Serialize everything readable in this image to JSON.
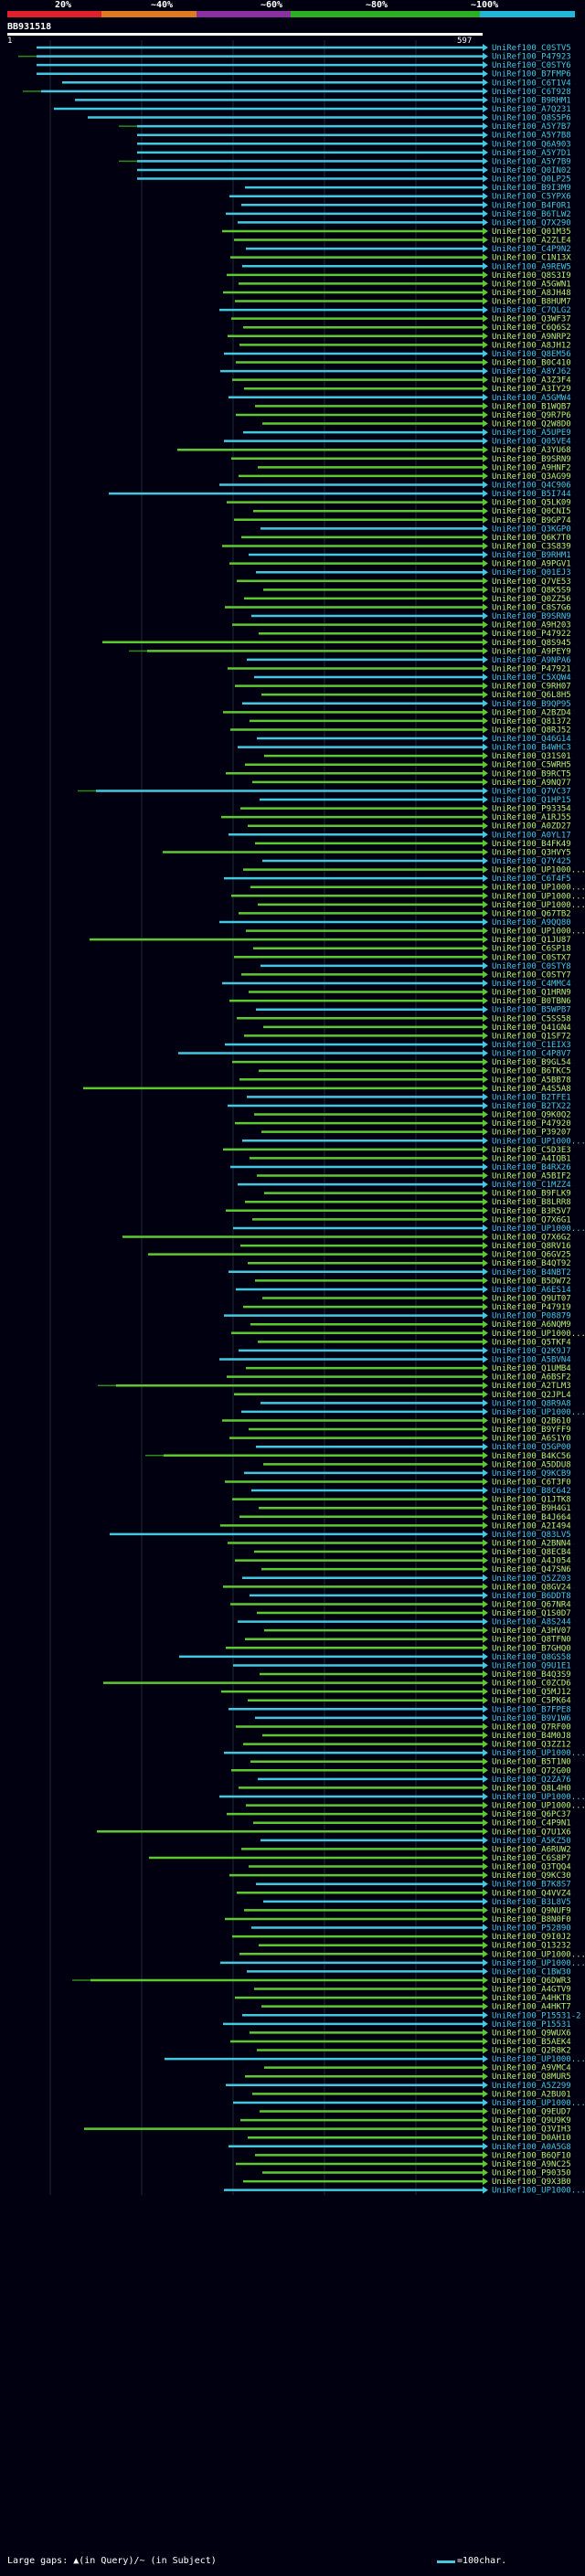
{
  "scale": {
    "ticks": [
      "20%",
      "~40%",
      "~60%",
      "~80%",
      "~100%"
    ],
    "colors": [
      "#e0202a",
      "#e07a20",
      "#8a30a0",
      "#2ab020",
      "#2ab020",
      "#20b8d8"
    ]
  },
  "query": {
    "id": "BB931518",
    "start_label": "1",
    "end_label": "597"
  },
  "hits": {
    "colors": {
      "high": "#44c8e0",
      "mid": "#5ec832",
      "low": "#2a8a1a",
      "label_high": "#44c8e0",
      "label_mid": "#b8f070"
    },
    "labels": [
      "UniRef100_C0STV5",
      "UniRef100_P47923",
      "UniRef100_C0STY6",
      "UniRef100_B7FMP6",
      "UniRef100_C6T1V4",
      "UniRef100_C6T928",
      "UniRef100_B9RHM1",
      "UniRef100_A7Q231",
      "UniRef100_Q8S5P6",
      "UniRef100_A5Y7B7",
      "UniRef100_A5Y7B8",
      "UniRef100_Q6A903",
      "UniRef100_A5Y7D1",
      "UniRef100_A5Y7B9",
      "UniRef100_Q0IN02",
      "UniRef100_Q0LP25",
      "UniRef100_B9I3M9",
      "UniRef100_C5YPX6",
      "UniRef100_B4F0R1",
      "UniRef100_B6TLW2",
      "UniRef100_Q7X290",
      "UniRef100_Q01M35",
      "UniRef100_A2ZLE4",
      "UniRef100_C4P9N2",
      "UniRef100_C1N13X",
      "UniRef100_A9REW5",
      "UniRef100_Q8S3I9",
      "UniRef100_A5GWN1",
      "UniRef100_A8JH48",
      "UniRef100_B8HUM7",
      "UniRef100_C7QLG2",
      "UniRef100_Q3WF37",
      "UniRef100_C6Q6S2",
      "UniRef100_A9NRP2",
      "UniRef100_A8JH12",
      "UniRef100_Q8EM56",
      "UniRef100_B0C410",
      "UniRef100_A8YJ62",
      "UniRef100_A3Z3F4",
      "UniRef100_A3IY29",
      "UniRef100_A5GMW4",
      "UniRef100_B1WQB7",
      "UniRef100_Q9R7P6",
      "UniRef100_Q2W8D0",
      "UniRef100_A5UPE9",
      "UniRef100_Q05VE4",
      "UniRef100_A3YU68",
      "UniRef100_B9SRN9",
      "UniRef100_A9HNF2",
      "UniRef100_Q3AG99",
      "UniRef100_Q4C906",
      "UniRef100_B5I744",
      "UniRef100_Q5LK09",
      "UniRef100_Q0CNI5",
      "UniRef100_B9GP74",
      "UniRef100_Q3KGP0",
      "UniRef100_Q6K7T0",
      "UniRef100_C3S839",
      "UniRef100_B9RHM1",
      "UniRef100_A9PGV1",
      "UniRef100_Q01EJ3",
      "UniRef100_Q7VE53",
      "UniRef100_Q8K5S9",
      "UniRef100_Q0ZZ56",
      "UniRef100_C8S7G6",
      "UniRef100_B9SRN9",
      "UniRef100_A9H203",
      "UniRef100_P47922",
      "UniRef100_Q8S945",
      "UniRef100_A9PEY9",
      "UniRef100_A9NPA6",
      "UniRef100_P47921",
      "UniRef100_C5XQW4",
      "UniRef100_C9RH07",
      "UniRef100_Q6L8H5",
      "UniRef100_B9QP95",
      "UniRef100_A2BZD4",
      "UniRef100_Q81372",
      "UniRef100_Q8RJ52",
      "UniRef100_Q46G14",
      "UniRef100_B4WHC3",
      "UniRef100_Q31S01",
      "UniRef100_C5WRH5",
      "UniRef100_B9RCT5",
      "UniRef100_A9NQ77",
      "UniRef100_Q7VC37",
      "UniRef100_Q1HP15",
      "UniRef100_P93354",
      "UniRef100_A1RJ55",
      "UniRef100_A0ZD27",
      "UniRef100_A0YL17",
      "UniRef100_B4FK49",
      "UniRef100_Q3HVY5",
      "UniRef100_Q7Y425",
      "UniRef100_UP1000...",
      "UniRef100_C6T4F5",
      "UniRef100_UP1000...",
      "UniRef100_UP1000...",
      "UniRef100_UP1000...",
      "UniRef100_Q67TB2",
      "UniRef100_A9QQ80",
      "UniRef100_UP1000...",
      "UniRef100_Q1JU87",
      "UniRef100_C6SP18",
      "UniRef100_C0STX7",
      "UniRef100_C0STY8",
      "UniRef100_C0STY7",
      "UniRef100_C4MMC4",
      "UniRef100_Q1HRN9",
      "UniRef100_B0TBN6",
      "UniRef100_B5WPB7",
      "UniRef100_C5SS58",
      "UniRef100_Q41GN4",
      "UniRef100_Q1SF72",
      "UniRef100_C1EIX3",
      "UniRef100_C4P8V7",
      "UniRef100_B9GL54",
      "UniRef100_B6TKC5",
      "UniRef100_A5BB78",
      "UniRef100_A4S5A8",
      "UniRef100_B2TFE1",
      "UniRef100_B2TX22",
      "UniRef100_Q9K0Q2",
      "UniRef100_P47920",
      "UniRef100_P39207",
      "UniRef100_UP1000...",
      "UniRef100_C5D3E3",
      "UniRef100_A4IQB1",
      "UniRef100_B4RX26",
      "UniRef100_A5BIF2",
      "UniRef100_C1MZZ4",
      "UniRef100_B9FLK9",
      "UniRef100_B8LRR8",
      "UniRef100_B3R5V7",
      "UniRef100_Q7X6G1",
      "UniRef100_UP1000...",
      "UniRef100_Q7X6G2",
      "UniRef100_Q8RV16",
      "UniRef100_Q6GV25",
      "UniRef100_B4QT92",
      "UniRef100_B4NBT2",
      "UniRef100_B5DW72",
      "UniRef100_A6ES14",
      "UniRef100_Q9UT07",
      "UniRef100_P47919",
      "UniRef100_P08879",
      "UniRef100_A6NQM9",
      "UniRef100_UP1000...",
      "UniRef100_Q5TKF4",
      "UniRef100_Q2K9J7",
      "UniRef100_A5BVN4",
      "UniRef100_Q1UMB4",
      "UniRef100_A6BSF2",
      "UniRef100_A2TLM3",
      "UniRef100_Q2JPL4",
      "UniRef100_Q8R9A8",
      "UniRef100_UP1000...",
      "UniRef100_Q2B610",
      "UniRef100_B9YFF9",
      "UniRef100_A6S1Y0",
      "UniRef100_Q5GP00",
      "UniRef100_B4KC56",
      "UniRef100_A5DDU8",
      "UniRef100_Q9KCB9",
      "UniRef100_C6T3F0",
      "UniRef100_B8C642",
      "UniRef100_Q1JTK8",
      "UniRef100_B9H4G1",
      "UniRef100_B4J664",
      "UniRef100_A2I494",
      "UniRef100_Q83LV5",
      "UniRef100_A2BNN4",
      "UniRef100_Q8ECB4",
      "UniRef100_A4J054",
      "UniRef100_Q47SN6",
      "UniRef100_Q5ZZ03",
      "UniRef100_Q8GV24",
      "UniRef100_B6DDT8",
      "UniRef100_Q67NR4",
      "UniRef100_Q1S0D7",
      "UniRef100_A8S244",
      "UniRef100_A3HV07",
      "UniRef100_Q8TFN0",
      "UniRef100_B7GHQ0",
      "UniRef100_Q8GS58",
      "UniRef100_Q9U1E1",
      "UniRef100_B4Q3S9",
      "UniRef100_C0ZCD6",
      "UniRef100_Q5MJ12",
      "UniRef100_C5PK64",
      "UniRef100_B7FPE8",
      "UniRef100_B9V1W6",
      "UniRef100_Q7RF00",
      "UniRef100_B4M0J8",
      "UniRef100_Q3ZZ12",
      "UniRef100_UP1000...",
      "UniRef100_B5T1N0",
      "UniRef100_Q72G00",
      "UniRef100_Q2ZA76",
      "UniRef100_Q8L4H0",
      "UniRef100_UP1000...",
      "UniRef100_UP1000...",
      "UniRef100_Q6PC37",
      "UniRef100_C4P9N1",
      "UniRef100_Q7U1X6",
      "UniRef100_A5KZ50",
      "UniRef100_A6RUW2",
      "UniRef100_C6S8P7",
      "UniRef100_Q3TQQ4",
      "UniRef100_Q9KC30",
      "UniRef100_B7K8S7",
      "UniRef100_Q4VVZ4",
      "UniRef100_B3L8V5",
      "UniRef100_Q9NUF9",
      "UniRef100_B8N0F0",
      "UniRef100_P52890",
      "UniRef100_Q9I0J2",
      "UniRef100_Q13232",
      "UniRef100_UP1000...",
      "UniRef100_UP1000...",
      "UniRef100_C1BW30",
      "UniRef100_Q6DWR3",
      "UniRef100_A4GTV9",
      "UniRef100_A4HKT8",
      "UniRef100_A4HKT7",
      "UniRef100_P15531-2",
      "UniRef100_P15531",
      "UniRef100_Q9WUX6",
      "UniRef100_B5AEK4",
      "UniRef100_Q2R8K2",
      "UniRef100_UP1000...",
      "UniRef100_A9VMC4",
      "UniRef100_Q8MUR5",
      "UniRef100_A5Z299",
      "UniRef100_A2BU01",
      "UniRef100_UP1000...",
      "UniRef100_Q9EUD7",
      "UniRef100_Q9U9K9",
      "UniRef100_Q3VIH3",
      "UniRef100_D0AH10",
      "UniRef100_A0A5G8",
      "UniRef100_B6QF10",
      "UniRef100_A9NC25",
      "UniRef100_P90350",
      "UniRef100_Q9X3B0",
      "UniRef100_UP1000..."
    ]
  },
  "legend": {
    "gaps_text": "Large gaps: ▲(in Query)/~ (in Subject)",
    "scale_text": "=100char."
  }
}
